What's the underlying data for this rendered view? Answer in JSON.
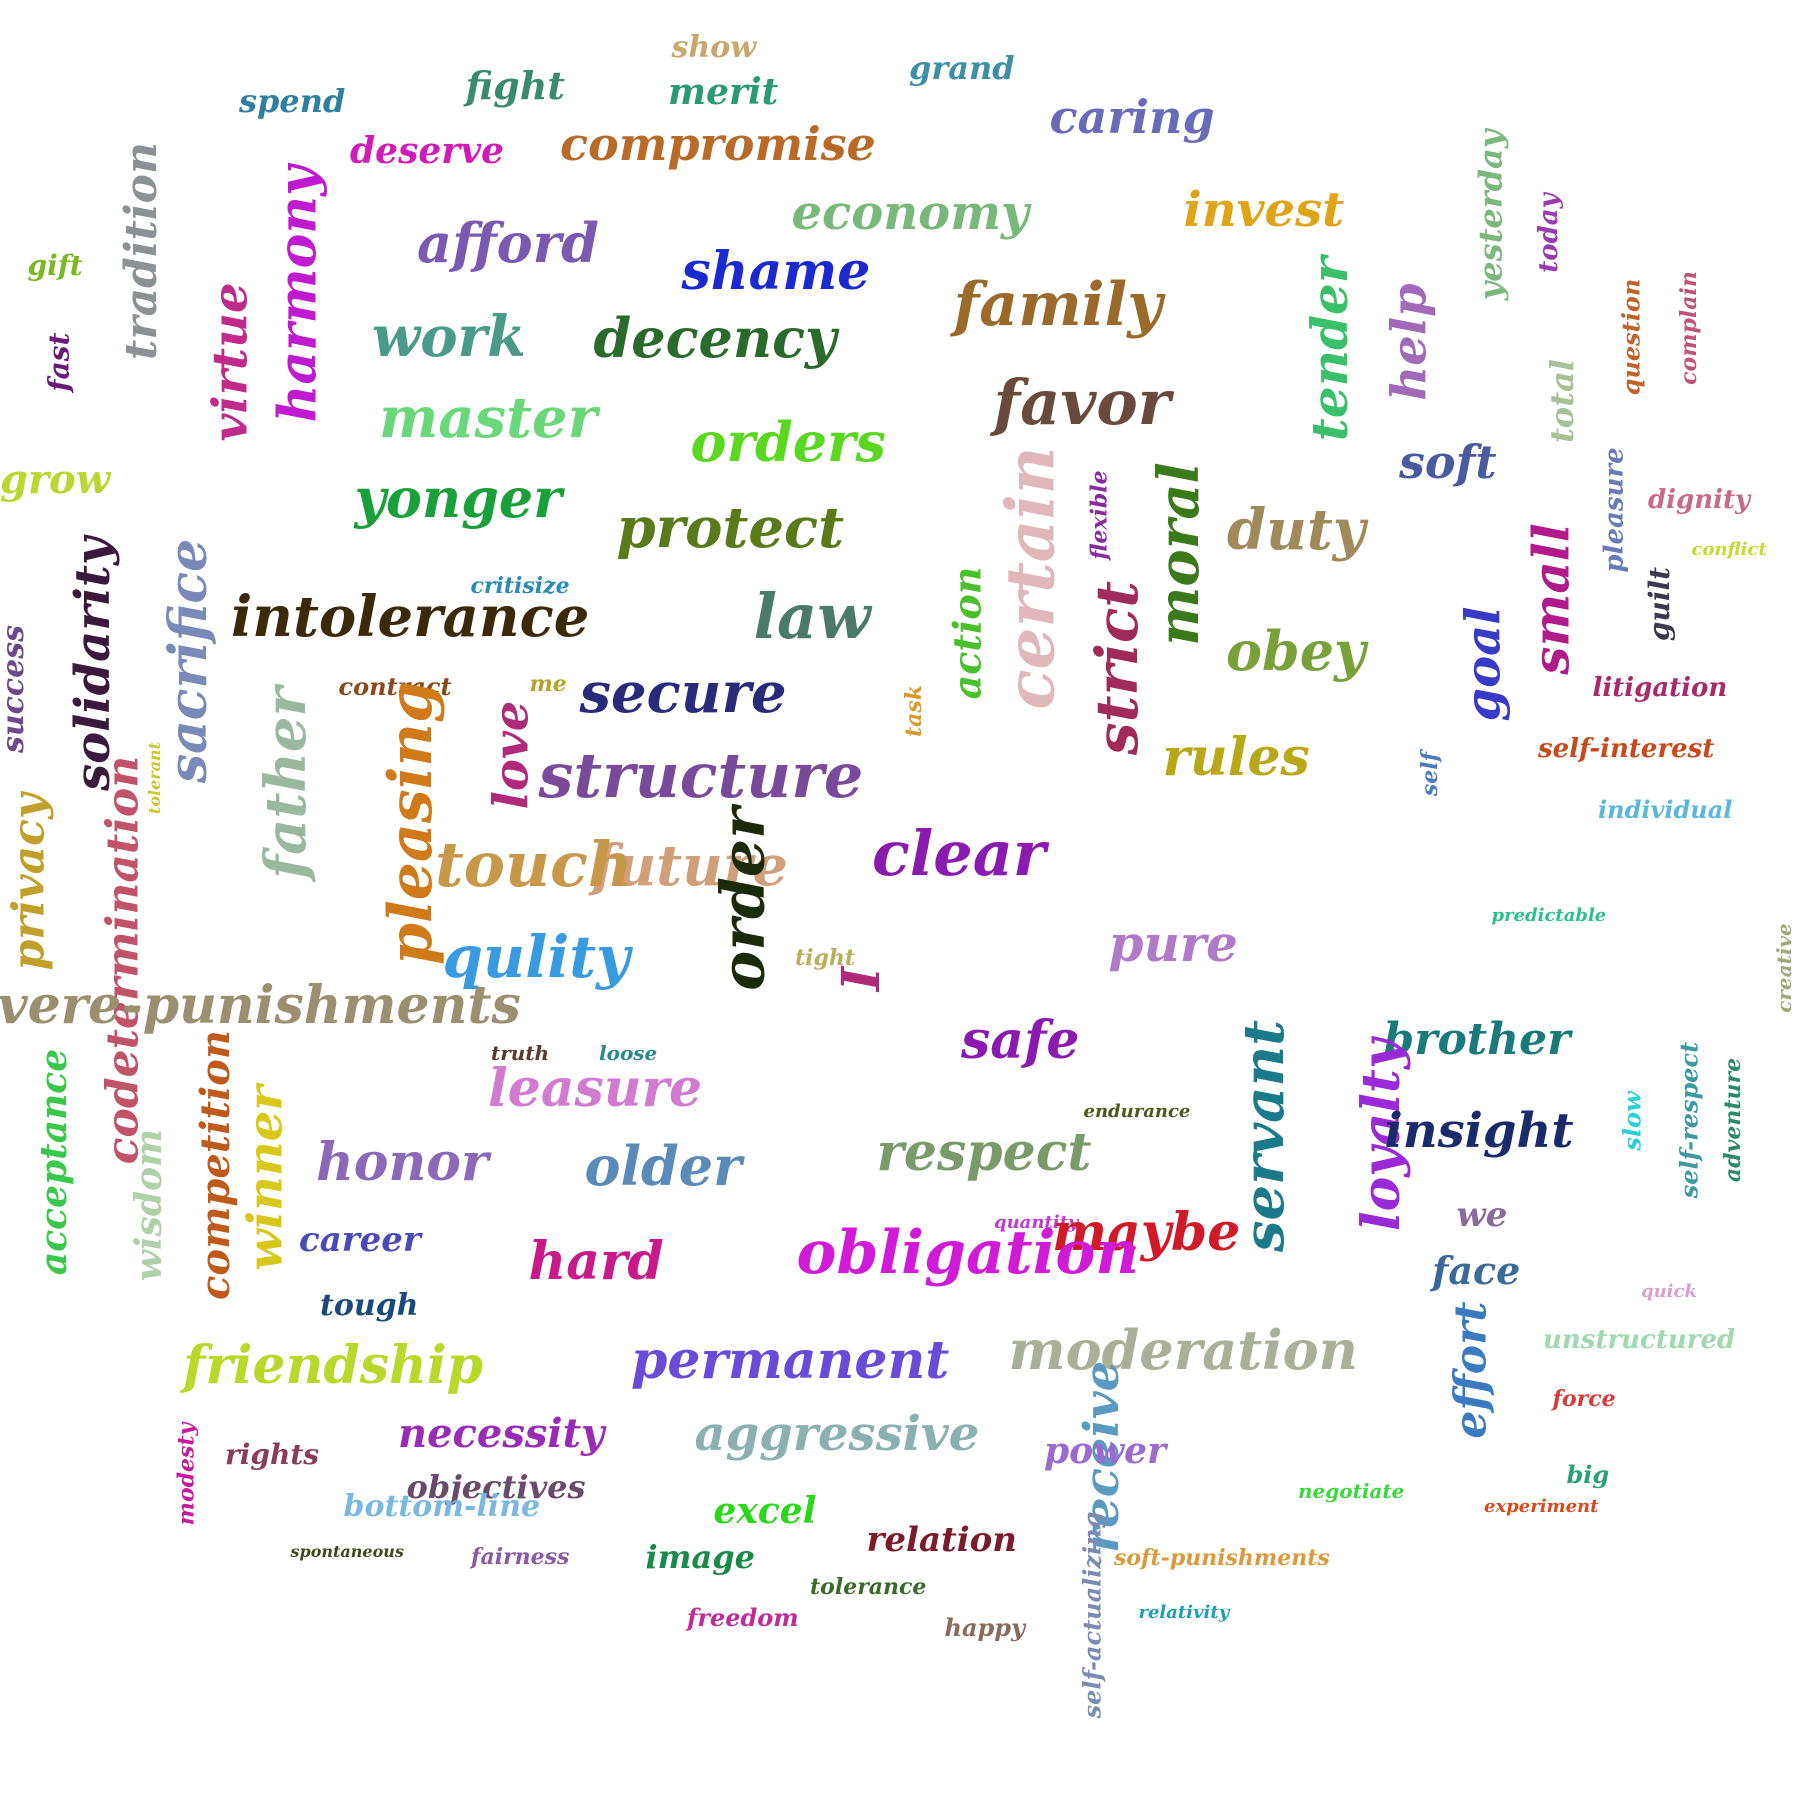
{
  "words": [
    {
      "text": "show",
      "color": "#c9a66b"
    },
    {
      "text": "grand",
      "color": "#3d8fa6"
    },
    {
      "text": "fight",
      "color": "#3a8a6e"
    },
    {
      "text": "merit",
      "color": "#2a9a72"
    },
    {
      "text": "spend",
      "color": "#2e7fa0"
    },
    {
      "text": "caring",
      "color": "#6a6ab8"
    },
    {
      "text": "deserve",
      "color": "#d11ab8"
    },
    {
      "text": "compromise",
      "color": "#b86a28"
    },
    {
      "text": "tradition",
      "color": "#8a9296"
    },
    {
      "text": "harmony",
      "color": "#c01ad0"
    },
    {
      "text": "economy",
      "color": "#78b878"
    },
    {
      "text": "invest",
      "color": "#e0a418"
    },
    {
      "text": "yesterday",
      "color": "#7ab87e"
    },
    {
      "text": "today",
      "color": "#9a3ab0"
    },
    {
      "text": "gift",
      "color": "#7ab820"
    },
    {
      "text": "afford",
      "color": "#7a5ab0"
    },
    {
      "text": "shame",
      "color": "#1a2ad0"
    },
    {
      "text": "family",
      "color": "#9a6a2a"
    },
    {
      "text": "fast",
      "color": "#6a1a7a"
    },
    {
      "text": "virtue",
      "color": "#c02a8a"
    },
    {
      "text": "work",
      "color": "#4a9a8a"
    },
    {
      "text": "decency",
      "color": "#2a6a2a"
    },
    {
      "text": "tender",
      "color": "#3ac06a"
    },
    {
      "text": "help",
      "color": "#a06ab8"
    },
    {
      "text": "question",
      "color": "#c0622a"
    },
    {
      "text": "complain",
      "color": "#c0527a"
    },
    {
      "text": "total",
      "color": "#a8c098"
    },
    {
      "text": "master",
      "color": "#6ad87a"
    },
    {
      "text": "orders",
      "color": "#5ad820"
    },
    {
      "text": "favor",
      "color": "#6a4a3a"
    },
    {
      "text": "grow",
      "color": "#b8d830"
    },
    {
      "text": "soft",
      "color": "#4a5aa0"
    },
    {
      "text": "pleasure",
      "color": "#6a7ab8"
    },
    {
      "text": "dignity",
      "color": "#c86a8a"
    },
    {
      "text": "yonger",
      "color": "#1aa03a"
    },
    {
      "text": "protect",
      "color": "#5a7a1a"
    },
    {
      "text": "certain",
      "color": "#e0b8bc"
    },
    {
      "text": "flexible",
      "color": "#8a2aa0"
    },
    {
      "text": "moral",
      "color": "#3a7a1a"
    },
    {
      "text": "duty",
      "color": "#a08a5a"
    },
    {
      "text": "conflict",
      "color": "#c8d830"
    },
    {
      "text": "solidarity",
      "color": "#3a1a3a"
    },
    {
      "text": "sacrifice",
      "color": "#7a8ab8"
    },
    {
      "text": "critisize",
      "color": "#2a8ab8"
    },
    {
      "text": "intolerance",
      "color": "#3a2a0a"
    },
    {
      "text": "law",
      "color": "#4a7a6a"
    },
    {
      "text": "action",
      "color": "#4ac02a"
    },
    {
      "text": "strict",
      "color": "#a02a5a"
    },
    {
      "text": "obey",
      "color": "#7aa03a"
    },
    {
      "text": "small",
      "color": "#b01a8a"
    },
    {
      "text": "guilt",
      "color": "#3a3a4a"
    },
    {
      "text": "success",
      "color": "#6a4a8a"
    },
    {
      "text": "contract",
      "color": "#8a4a1a"
    },
    {
      "text": "me",
      "color": "#b8a02a"
    },
    {
      "text": "secure",
      "color": "#2a2a7a"
    },
    {
      "text": "task",
      "color": "#d89a2a"
    },
    {
      "text": "goal",
      "color": "#3a3ac8"
    },
    {
      "text": "litigation",
      "color": "#a82a6a"
    },
    {
      "text": "tolerant",
      "color": "#c8c82a"
    },
    {
      "text": "father",
      "color": "#9ab8a0"
    },
    {
      "text": "pleasing",
      "color": "#d07a1a"
    },
    {
      "text": "love",
      "color": "#b02a7a"
    },
    {
      "text": "structure",
      "color": "#7a4a9a"
    },
    {
      "text": "rules",
      "color": "#b8a818"
    },
    {
      "text": "self",
      "color": "#4a7ac0"
    },
    {
      "text": "self-interest",
      "color": "#c84a1a"
    },
    {
      "text": "individual",
      "color": "#5ab8d8"
    },
    {
      "text": "future",
      "color": "#d0a07a"
    },
    {
      "text": "privacy",
      "color": "#c0a02a"
    },
    {
      "text": "touch",
      "color": "#c8984a"
    },
    {
      "text": "order",
      "color": "#1a2a0a"
    },
    {
      "text": "clear",
      "color": "#8a1ab0"
    },
    {
      "text": "predictable",
      "color": "#2ac090"
    },
    {
      "text": "creative",
      "color": "#a0a878"
    },
    {
      "text": "codetermination",
      "color": "#c0526a"
    },
    {
      "text": "qulity",
      "color": "#3a9ae0"
    },
    {
      "text": "tight",
      "color": "#b8b05a"
    },
    {
      "text": "I",
      "color": "#b02a7a"
    },
    {
      "text": "pure",
      "color": "#b07ac8"
    },
    {
      "text": "severe-punishments",
      "color": "#9a9070"
    },
    {
      "text": "safe",
      "color": "#8a1ab0"
    },
    {
      "text": "brother",
      "color": "#1a7a7a"
    },
    {
      "text": "truth",
      "color": "#5a3a2a"
    },
    {
      "text": "loose",
      "color": "#2a8a8a"
    },
    {
      "text": "leasure",
      "color": "#d07ad0"
    },
    {
      "text": "servant",
      "color": "#1a7a8a"
    },
    {
      "text": "loyalty",
      "color": "#9a2ad8"
    },
    {
      "text": "endurance",
      "color": "#4a5a1a"
    },
    {
      "text": "insight",
      "color": "#1a2a6a"
    },
    {
      "text": "slow",
      "color": "#2ad0d8"
    },
    {
      "text": "self-respect",
      "color": "#3a9aa0"
    },
    {
      "text": "adventure",
      "color": "#2a8a6a"
    },
    {
      "text": "acceptance",
      "color": "#3ac84a"
    },
    {
      "text": "competition",
      "color": "#c05a1a"
    },
    {
      "text": "winner",
      "color": "#d8c81a"
    },
    {
      "text": "honor",
      "color": "#8a6ab8"
    },
    {
      "text": "older",
      "color": "#5a8ab8"
    },
    {
      "text": "respect",
      "color": "#7a9a6a"
    },
    {
      "text": "wisdom",
      "color": "#b0d0a8"
    },
    {
      "text": "quantity",
      "color": "#c03ad8"
    },
    {
      "text": "maybe",
      "color": "#d01a2a"
    },
    {
      "text": "we",
      "color": "#8a6a9a"
    },
    {
      "text": "career",
      "color": "#4a4ab8"
    },
    {
      "text": "hard",
      "color": "#c81a8a"
    },
    {
      "text": "obligation",
      "color": "#d01ad8"
    },
    {
      "text": "face",
      "color": "#3a6a9a"
    },
    {
      "text": "tough",
      "color": "#1a4a7a"
    },
    {
      "text": "quick",
      "color": "#d8a0d0"
    },
    {
      "text": "unstructured",
      "color": "#a0d8b0"
    },
    {
      "text": "friendship",
      "color": "#b8d82a"
    },
    {
      "text": "permanent",
      "color": "#6a4ad8"
    },
    {
      "text": "moderation",
      "color": "#a8b098"
    },
    {
      "text": "effort",
      "color": "#3a7ac0"
    },
    {
      "text": "force",
      "color": "#d83a3a"
    },
    {
      "text": "necessity",
      "color": "#9a2ab8"
    },
    {
      "text": "aggressive",
      "color": "#8ab0b0"
    },
    {
      "text": "modesty",
      "color": "#c81a9a"
    },
    {
      "text": "rights",
      "color": "#8a3a5a"
    },
    {
      "text": "receive",
      "color": "#5a9ac0"
    },
    {
      "text": "power",
      "color": "#9a6ad0"
    },
    {
      "text": "big",
      "color": "#2aa07a"
    },
    {
      "text": "negotiate",
      "color": "#3ad83a"
    },
    {
      "text": "objectives",
      "color": "#6a4a6a"
    },
    {
      "text": "experiment",
      "color": "#d84a1a"
    },
    {
      "text": "bottom-line",
      "color": "#7ab8e0"
    },
    {
      "text": "excel",
      "color": "#2ad81a"
    },
    {
      "text": "relation",
      "color": "#7a1a2a"
    },
    {
      "text": "self-actualizing",
      "color": "#7a8ab0"
    },
    {
      "text": "soft-punishments",
      "color": "#d89a3a"
    },
    {
      "text": "spontaneous",
      "color": "#3a4a1a"
    },
    {
      "text": "fairness",
      "color": "#8a5aa0"
    },
    {
      "text": "image",
      "color": "#1a8a4a"
    },
    {
      "text": "tolerance",
      "color": "#3a6a2a"
    },
    {
      "text": "relativity",
      "color": "#1aa0b0"
    },
    {
      "text": "freedom",
      "color": "#c02a9a"
    },
    {
      "text": "happy",
      "color": "#8a6a5a"
    }
  ]
}
